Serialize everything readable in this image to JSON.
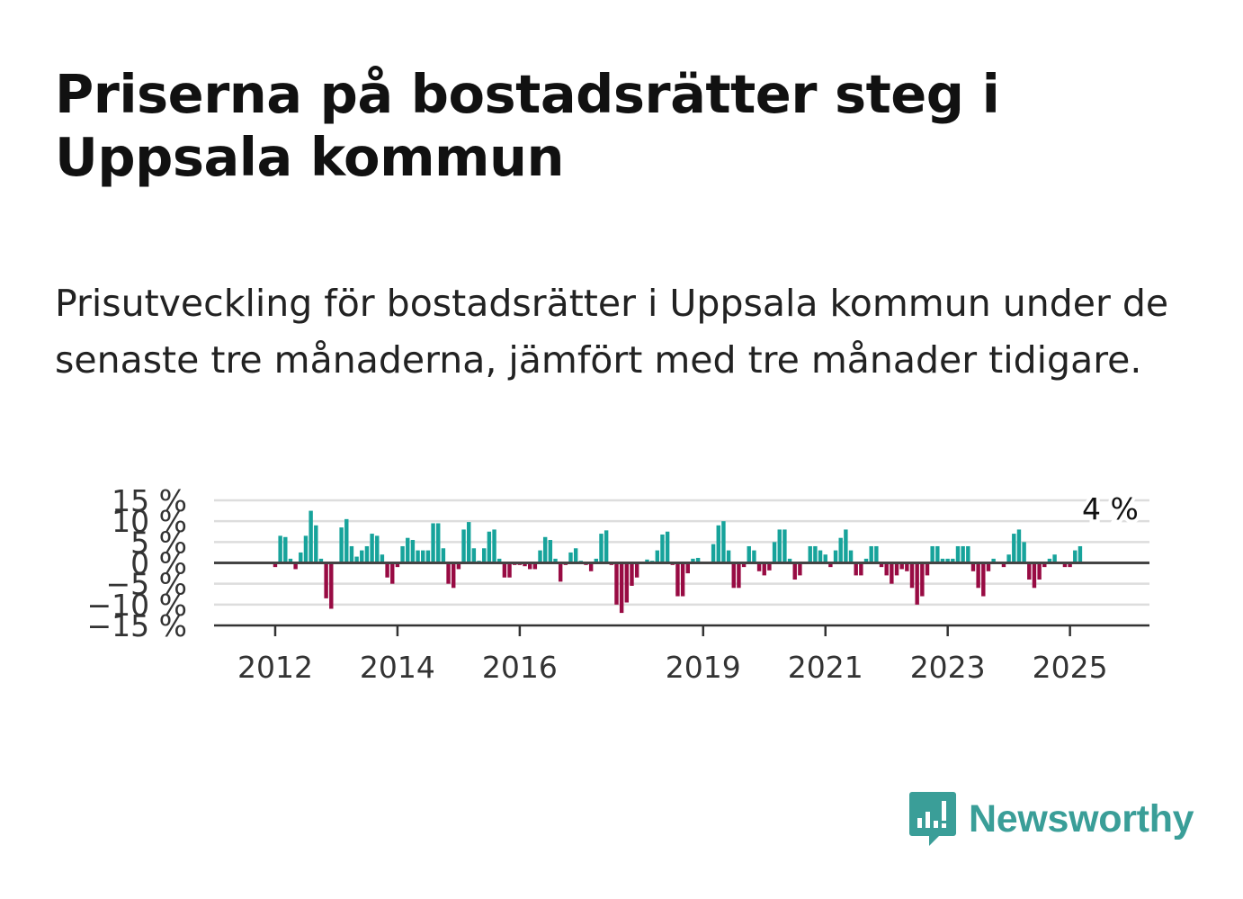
{
  "header": {
    "title": "Priserna på bostadsrätter steg i Uppsala kommun",
    "subtitle": "Prisutveckling för bostadsrätter i Uppsala kommun under de senaste tre månaderna, jämfört med tre månader tidigare."
  },
  "brand": {
    "name": "Newsworthy",
    "icon": "newsworthy-logo-icon",
    "color": "#3a9e98"
  },
  "chart_data": {
    "type": "bar",
    "title": "",
    "xlabel": "",
    "ylabel": "",
    "ylim": [
      -15,
      15
    ],
    "yticks": [
      15,
      10,
      5,
      0,
      -5,
      -10,
      -15
    ],
    "ytick_labels": [
      "15 %",
      "10 %",
      "5 %",
      "0 %",
      "−5 %",
      "−10 %",
      "−15 %"
    ],
    "x_range": [
      2011.0,
      2026.3
    ],
    "xticks": [
      2012,
      2014,
      2016,
      2019,
      2021,
      2023,
      2025
    ],
    "xtick_labels": [
      "2012",
      "2014",
      "2016",
      "2019",
      "2021",
      "2023",
      "2025"
    ],
    "grid": true,
    "legend": "none",
    "colors": {
      "positive": "#17a39b",
      "negative": "#980b43",
      "zero_line": "#444444",
      "grid": "#dddddd"
    },
    "annotation": {
      "text": "4 %",
      "x": 2025.6,
      "value": 4
    },
    "series": [
      {
        "start": 2012.0,
        "step": 0.08333,
        "values": [
          -1,
          6.5,
          6.2,
          1,
          -1.5,
          2.5,
          6.5,
          12.5,
          9,
          1,
          -8.5,
          -11,
          -0.3,
          8.5,
          10.5,
          4,
          1.5,
          3,
          4,
          7,
          6.5,
          2,
          -3.5,
          -5,
          -1,
          4,
          6,
          5.5,
          3,
          3,
          3,
          9.5,
          9.5,
          3.5,
          -5,
          -6,
          -1.5,
          8,
          9.8,
          3.5,
          0.5,
          3.5,
          7.5,
          8,
          1,
          -3.5,
          -3.5,
          -0.5,
          -0.5,
          -0.8,
          -1.5,
          -1.5,
          3,
          6.2,
          5.5,
          1,
          -4.5,
          -0.5,
          2.5,
          3.5,
          0.5,
          -0.5,
          -2,
          1,
          7,
          7.8,
          -0.5,
          -10,
          -12,
          -9.5,
          -5.5,
          -3.5,
          0.3,
          0.8,
          0.5,
          3,
          6.8,
          7.5,
          -0.5,
          -8,
          -8,
          -2.5,
          1,
          1.2,
          0,
          0.2,
          4.5,
          9,
          10,
          3,
          -6,
          -6,
          -1,
          4,
          3,
          -2,
          -3,
          -1.8,
          5,
          8,
          8,
          1,
          -4,
          -3,
          0,
          4,
          4,
          3,
          2,
          -1,
          3,
          6,
          8,
          3,
          -3,
          -3,
          1,
          4,
          4,
          -1,
          -3,
          -5,
          -3,
          -1.5,
          -2,
          -6,
          -10,
          -8,
          -3,
          4,
          4,
          1,
          1,
          1,
          4,
          4,
          4,
          -2,
          -6,
          -8,
          -2,
          1,
          0,
          -1,
          2,
          7,
          8,
          5,
          -4,
          -6,
          -4,
          -1,
          1,
          2,
          0,
          -1,
          -1,
          3,
          4
        ]
      }
    ]
  }
}
